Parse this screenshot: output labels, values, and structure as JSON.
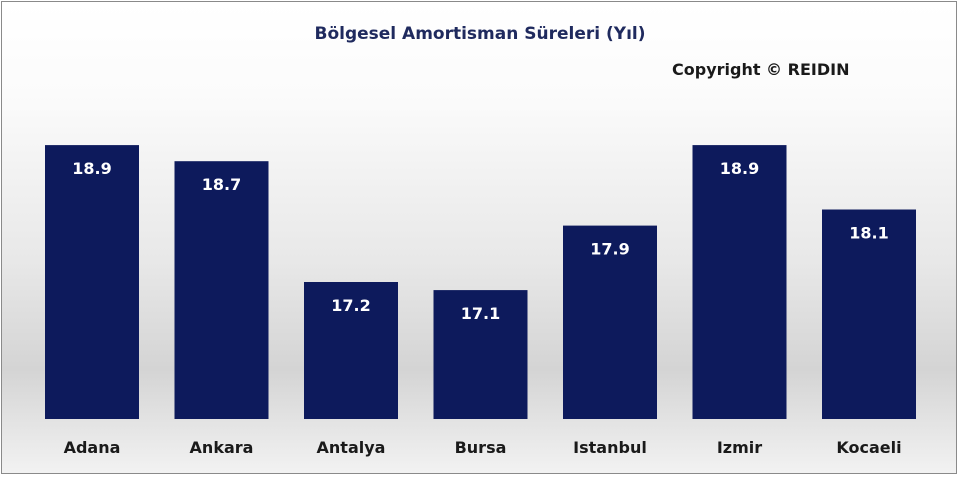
{
  "title": "Bölgesel Amortisman Süreleri (Yıl)",
  "copyright": "Copyright © REIDIN",
  "colors": {
    "bar": "#0d1a5c",
    "bar_label": "#ffffff",
    "axis_label": "#1a1a1a",
    "title": "#1f2a5e"
  },
  "chart_data": {
    "type": "bar",
    "title": "Bölgesel Amortisman Süreleri (Yıl)",
    "categories": [
      "Adana",
      "Ankara",
      "Antalya",
      "Bursa",
      "Istanbul",
      "Izmir",
      "Kocaeli"
    ],
    "values": [
      18.9,
      18.7,
      17.2,
      17.1,
      17.9,
      18.9,
      18.1
    ],
    "value_labels": [
      "18.9",
      "18.7",
      "17.2",
      "17.1",
      "17.9",
      "18.9",
      "18.1"
    ],
    "xlabel": "",
    "ylabel": "",
    "ylim": [
      15.5,
      19.0
    ],
    "grid": false,
    "legend": "none",
    "data_labels": "inside-top"
  }
}
